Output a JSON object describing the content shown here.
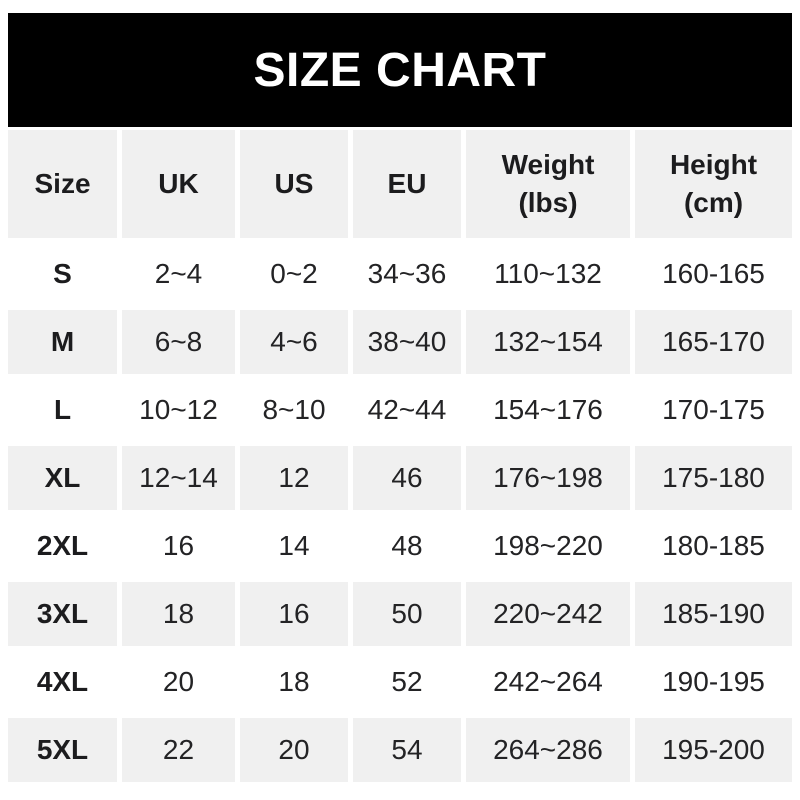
{
  "banner": {
    "title": "SIZE CHART"
  },
  "table": {
    "headers": [
      {
        "line1": "Size"
      },
      {
        "line1": "UK"
      },
      {
        "line1": "US"
      },
      {
        "line1": "EU"
      },
      {
        "line1": "Weight",
        "line2": "(lbs)"
      },
      {
        "line1": "Height",
        "line2": "(cm)"
      }
    ],
    "rows": [
      {
        "size": "S",
        "uk": "2~4",
        "us": "0~2",
        "eu": "34~36",
        "weight": "110~132",
        "height": "160-165"
      },
      {
        "size": "M",
        "uk": "6~8",
        "us": "4~6",
        "eu": "38~40",
        "weight": "132~154",
        "height": "165-170"
      },
      {
        "size": "L",
        "uk": "10~12",
        "us": "8~10",
        "eu": "42~44",
        "weight": "154~176",
        "height": "170-175"
      },
      {
        "size": "XL",
        "uk": "12~14",
        "us": "12",
        "eu": "46",
        "weight": "176~198",
        "height": "175-180"
      },
      {
        "size": "2XL",
        "uk": "16",
        "us": "14",
        "eu": "48",
        "weight": "198~220",
        "height": "180-185"
      },
      {
        "size": "3XL",
        "uk": "18",
        "us": "16",
        "eu": "50",
        "weight": "220~242",
        "height": "185-190"
      },
      {
        "size": "4XL",
        "uk": "20",
        "us": "18",
        "eu": "52",
        "weight": "242~264",
        "height": "190-195"
      },
      {
        "size": "5XL",
        "uk": "22",
        "us": "20",
        "eu": "54",
        "weight": "264~286",
        "height": "195-200"
      }
    ]
  },
  "chart_data": {
    "type": "table",
    "title": "SIZE CHART",
    "columns": [
      "Size",
      "UK",
      "US",
      "EU",
      "Weight (lbs)",
      "Height (cm)"
    ],
    "rows": [
      [
        "S",
        "2~4",
        "0~2",
        "34~36",
        "110~132",
        "160-165"
      ],
      [
        "M",
        "6~8",
        "4~6",
        "38~40",
        "132~154",
        "165-170"
      ],
      [
        "L",
        "10~12",
        "8~10",
        "42~44",
        "154~176",
        "170-175"
      ],
      [
        "XL",
        "12~14",
        "12",
        "46",
        "176~198",
        "175-180"
      ],
      [
        "2XL",
        "16",
        "14",
        "48",
        "198~220",
        "180-185"
      ],
      [
        "3XL",
        "18",
        "16",
        "50",
        "220~242",
        "185-190"
      ],
      [
        "4XL",
        "20",
        "18",
        "52",
        "242~264",
        "190-195"
      ],
      [
        "5XL",
        "22",
        "20",
        "54",
        "264~286",
        "195-200"
      ]
    ]
  },
  "colors": {
    "banner_bg": "#000000",
    "banner_text": "#ffffff",
    "stripe_bg": "#f0f0f0",
    "row_bg": "#ffffff",
    "text": "#232325"
  }
}
